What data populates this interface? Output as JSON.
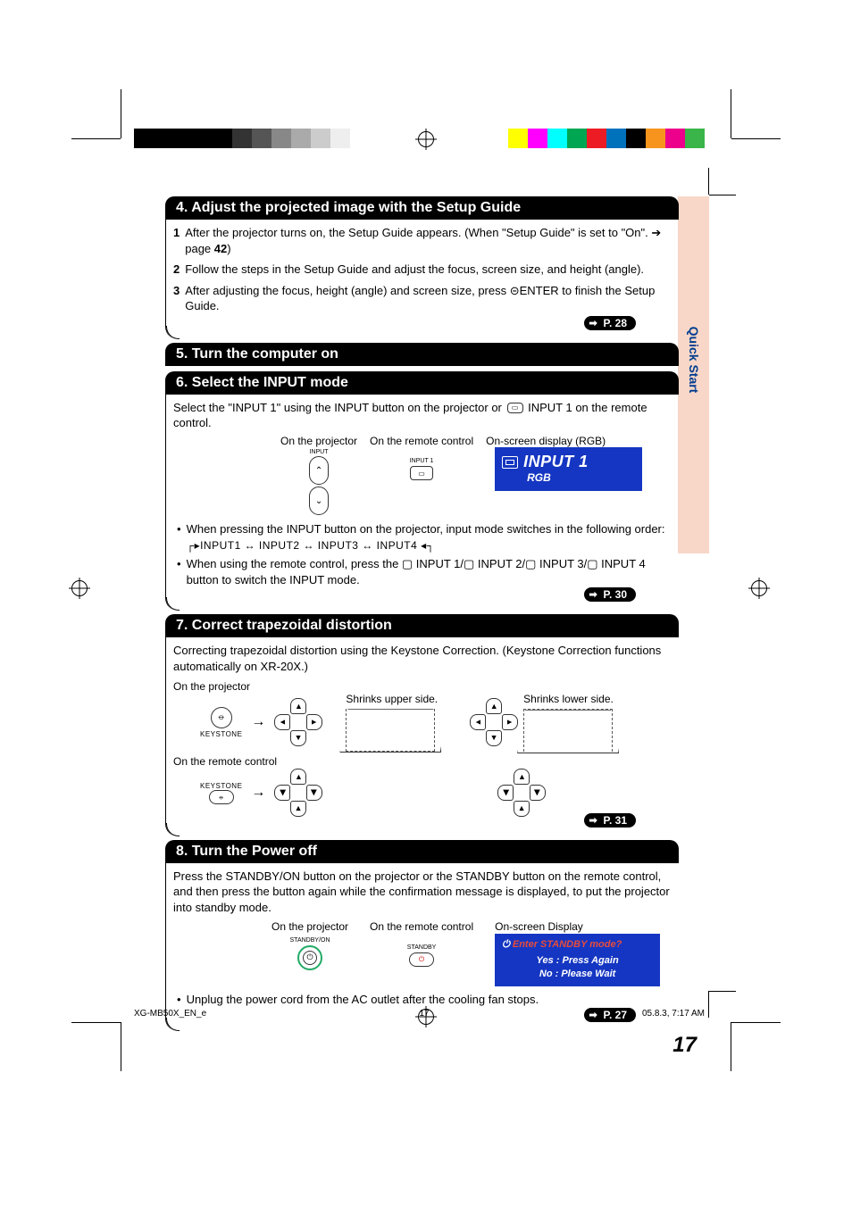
{
  "print_marks": {
    "colorbar_left": [
      "#000000",
      "#000000",
      "#000000",
      "#000000",
      "#000000",
      "#333333",
      "#555555",
      "#888888",
      "#aaaaaa",
      "#cccccc",
      "#eeeeee"
    ],
    "colorbar_right": [
      "#ffff00",
      "#ff00ff",
      "#00ffff",
      "#00a651",
      "#ed1c24",
      "#0072bc",
      "#000000",
      "#f7941d",
      "#ec008c",
      "#39b54a"
    ]
  },
  "side_tab": "Quick Start",
  "page_number": "17",
  "footer": {
    "doc": "XG-MB50X_EN_e",
    "page": "17",
    "timestamp": "05.8.3, 7:17 AM"
  },
  "sections": {
    "s4": {
      "title": "4.  Adjust the projected image with the Setup Guide",
      "steps": [
        {
          "n": "1",
          "t": "After the projector turns on, the Setup Guide appears. (When \"Setup Guide\" is set to \"On\". ➔ page ",
          "bold_trail": "42",
          "trail": ")"
        },
        {
          "n": "2",
          "t": "Follow the steps in the Setup Guide and adjust the focus, screen size, and height (angle)."
        },
        {
          "n": "3",
          "t": "After adjusting the focus, height (angle) and screen size, press ⊝ENTER to finish the Setup Guide."
        }
      ],
      "page_ref": "P. 28"
    },
    "s5": {
      "title": "5. Turn the computer on"
    },
    "s6": {
      "title": "6. Select the INPUT mode",
      "intro_a": "Select the \"INPUT 1\" using the INPUT button on the projector or ",
      "intro_b": " INPUT 1 on the remote control.",
      "labels": {
        "on_proj": "On the projector",
        "on_remote": "On the remote control",
        "osd": "On-screen display (RGB)",
        "input_btn_caption": "INPUT",
        "remote_btn_caption": "INPUT 1"
      },
      "osd": {
        "line1": "INPUT 1",
        "line2": "RGB"
      },
      "bullets": [
        "When pressing the INPUT button on the projector, input mode switches in the following order:",
        "When using the remote control, press the ▢ INPUT 1/▢ INPUT 2/▢ INPUT 3/▢ INPUT 4 button to switch the INPUT mode."
      ],
      "order": [
        "INPUT1",
        "INPUT2",
        "INPUT3",
        "INPUT4"
      ],
      "page_ref": "P. 30"
    },
    "s7": {
      "title": "7. Correct trapezoidal distortion",
      "intro": "Correcting trapezoidal distortion using the Keystone Correction. (Keystone Correction functions automatically on XR-20X.)",
      "labels": {
        "on_proj": "On the projector",
        "on_remote": "On the remote control",
        "shrinks_upper": "Shrinks upper side.",
        "shrinks_lower": "Shrinks lower side.",
        "keystone": "KEYSTONE"
      },
      "page_ref": "P. 31"
    },
    "s8": {
      "title": "8. Turn the Power off",
      "intro": "Press the STANDBY/ON button on the projector or the STANDBY button on the remote control, and then press the button again while the confirmation message is displayed, to put the projector into standby mode.",
      "labels": {
        "on_proj": "On the projector",
        "on_remote": "On the remote control",
        "osd": "On-screen Display",
        "standby_on": "STANDBY/ON",
        "standby": "STANDBY"
      },
      "osd": {
        "q": "Enter STANDBY mode?",
        "yes": "Yes : Press Again",
        "no": "No : Please Wait"
      },
      "bullet": "Unplug the power cord from the AC outlet after the cooling fan stops.",
      "page_ref": "P. 27"
    }
  },
  "colors": {
    "section_bg": "#000000",
    "section_fg": "#ffffff",
    "osd_bg": "#1536c2",
    "osd_fg": "#ffffff",
    "tab_bg": "#f8d7c8",
    "tab_fg": "#003c8f",
    "standby_q": "#e74c3c"
  },
  "typography": {
    "body_font": "Arial, Helvetica, sans-serif",
    "body_size_pt": 10,
    "header_size_pt": 12,
    "page_num_size_pt": 18
  }
}
